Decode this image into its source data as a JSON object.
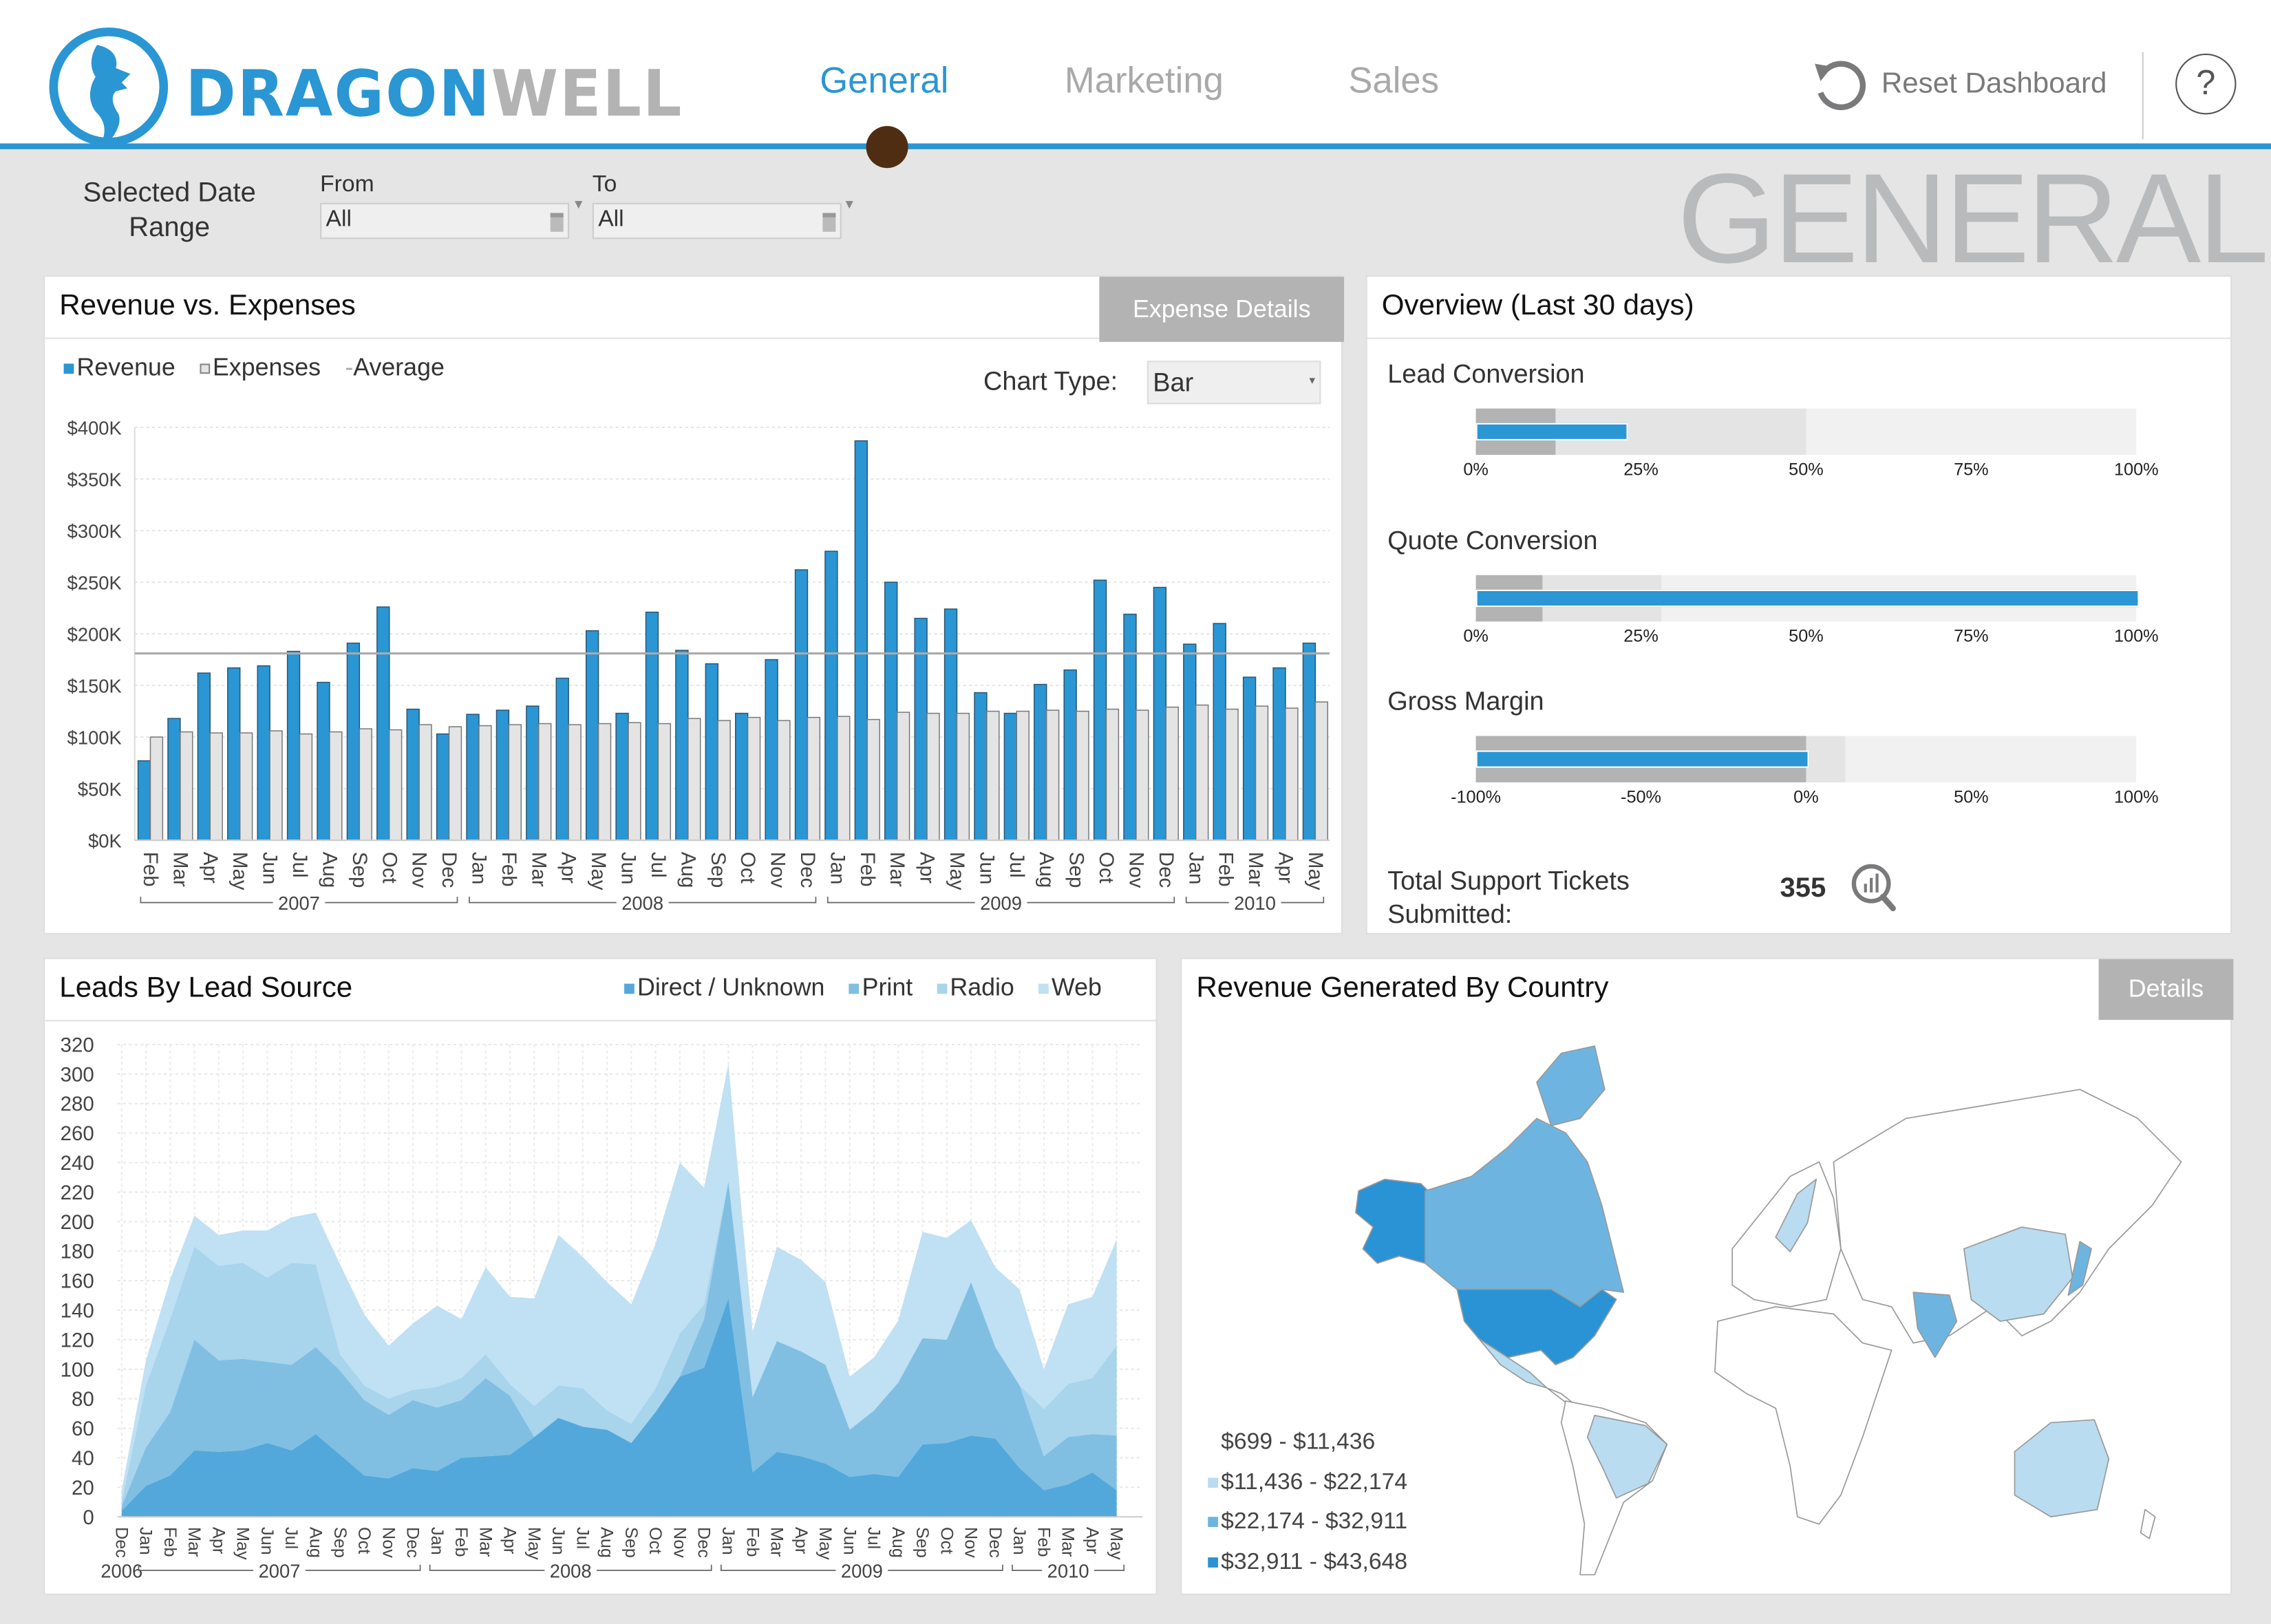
{
  "logo": {
    "part1": "DRAGON",
    "part2": "WELL"
  },
  "nav": {
    "tabs": [
      {
        "label": "General",
        "active": true
      },
      {
        "label": "Marketing"
      },
      {
        "label": "Sales"
      }
    ]
  },
  "toolbar": {
    "reset_label": "Reset Dashboard",
    "help_label": "?"
  },
  "filters": {
    "title": "Selected Date Range",
    "from_label": "From",
    "from_value": "All",
    "to_label": "To",
    "to_value": "All"
  },
  "page_title": "GENERAL",
  "revenue_panel": {
    "title": "Revenue vs. Expenses",
    "details_button": "Expense Details",
    "legend": [
      "Revenue",
      "Expenses",
      "Average"
    ],
    "chart_type_label": "Chart Type:",
    "chart_type_value": "Bar"
  },
  "overview_panel": {
    "title": "Overview (Last 30 days)",
    "bullets": [
      {
        "label": "Lead Conversion",
        "axis": [
          0,
          100
        ],
        "ticks": [
          "0%",
          "25%",
          "50%",
          "75%",
          "100%"
        ],
        "value": 22.6,
        "target": 12,
        "band": 50
      },
      {
        "label": "Quote Conversion",
        "axis": [
          0,
          100
        ],
        "ticks": [
          "0%",
          "25%",
          "50%",
          "75%",
          "100%"
        ],
        "value": 100,
        "target": 10,
        "band": 28
      },
      {
        "label": "Gross Margin",
        "axis": [
          -100,
          100
        ],
        "ticks": [
          "-100%",
          "-50%",
          "0%",
          "50%",
          "100%"
        ],
        "value": 0,
        "target": 0,
        "band": 12
      }
    ],
    "tickets_label": "Total Support Tickets Submitted:",
    "tickets_value": "355"
  },
  "leads_panel": {
    "title": "Leads By Lead Source",
    "legend": [
      "Direct / Unknown",
      "Print",
      "Radio",
      "Web"
    ]
  },
  "country_panel": {
    "title": "Revenue Generated By Country",
    "details_button": "Details",
    "legend": [
      "$699 - $11,436",
      "$11,436 - $22,174",
      "$22,174 - $32,911",
      "$32,911 - $43,648"
    ],
    "legend_colors": [
      "#ffffff",
      "#b9dcf0",
      "#6db5e0",
      "#2a93d5"
    ]
  },
  "colors": {
    "accent": "#2a96d4",
    "revenue": "#2a96d4",
    "expenses": "#e4e4e4",
    "average": "#aaaaaa",
    "title_gray": "#b9babb",
    "active_dot": "#4f2d12"
  },
  "chart_data": [
    {
      "type": "bar",
      "title": "Revenue vs. Expenses",
      "ylim": [
        0,
        400
      ],
      "yticks": [
        "$0K",
        "$50K",
        "$100K",
        "$150K",
        "$200K",
        "$250K",
        "$300K",
        "$350K",
        "$400K"
      ],
      "y_unit": "$K",
      "grid": true,
      "legend_position": "top-left",
      "months": [
        "Feb",
        "Mar",
        "Apr",
        "May",
        "Jun",
        "Jul",
        "Aug",
        "Sep",
        "Oct",
        "Nov",
        "Dec",
        "Jan",
        "Feb",
        "Mar",
        "Apr",
        "May",
        "Jun",
        "Jul",
        "Aug",
        "Sep",
        "Oct",
        "Nov",
        "Dec",
        "Jan",
        "Feb",
        "Mar",
        "Apr",
        "May",
        "Jun",
        "Jul",
        "Aug",
        "Sep",
        "Oct",
        "Nov",
        "Dec",
        "Jan",
        "Feb",
        "Mar",
        "Apr",
        "May"
      ],
      "year_groups": [
        {
          "label": "2007",
          "count": 11
        },
        {
          "label": "2008",
          "count": 12
        },
        {
          "label": "2009",
          "count": 12
        },
        {
          "label": "2010",
          "count": 5
        }
      ],
      "series": [
        {
          "name": "Revenue",
          "values": [
            77,
            118,
            162,
            167,
            169,
            183,
            153,
            191,
            226,
            127,
            103,
            122,
            126,
            130,
            157,
            203,
            123,
            221,
            184,
            171,
            123,
            175,
            262,
            280,
            387,
            250,
            215,
            224,
            143,
            123,
            151,
            165,
            252,
            219,
            245,
            190,
            210,
            158,
            167,
            191
          ]
        },
        {
          "name": "Expenses",
          "values": [
            100,
            105,
            104,
            104,
            106,
            103,
            105,
            108,
            107,
            112,
            110,
            111,
            112,
            113,
            112,
            113,
            114,
            113,
            118,
            116,
            119,
            116,
            119,
            120,
            117,
            124,
            123,
            123,
            125,
            125,
            126,
            125,
            127,
            126,
            129,
            131,
            127,
            130,
            128,
            134
          ]
        }
      ],
      "average": 181
    },
    {
      "type": "area",
      "stacked": true,
      "title": "Leads By Lead Source",
      "ylim": [
        0,
        320
      ],
      "yticks": [
        "0",
        "20",
        "40",
        "60",
        "80",
        "100",
        "120",
        "140",
        "160",
        "180",
        "200",
        "220",
        "240",
        "260",
        "280",
        "300",
        "320"
      ],
      "grid": true,
      "legend_position": "top-right",
      "months": [
        "Dec",
        "Jan",
        "Feb",
        "Mar",
        "Apr",
        "May",
        "Jun",
        "Jul",
        "Aug",
        "Sep",
        "Oct",
        "Nov",
        "Dec",
        "Jan",
        "Feb",
        "Mar",
        "Apr",
        "May",
        "Jun",
        "Jul",
        "Aug",
        "Sep",
        "Oct",
        "Nov",
        "Dec",
        "Jan",
        "Feb",
        "Mar",
        "Apr",
        "May",
        "Jun",
        "Jul",
        "Aug",
        "Sep",
        "Oct",
        "Nov",
        "Dec",
        "Jan",
        "Feb",
        "Mar",
        "Apr",
        "May"
      ],
      "year_groups": [
        {
          "label": "2006",
          "count": 1
        },
        {
          "label": "2007",
          "count": 12
        },
        {
          "label": "2008",
          "count": 12
        },
        {
          "label": "2009",
          "count": 12
        },
        {
          "label": "2010",
          "count": 5
        }
      ],
      "series": [
        {
          "name": "Direct / Unknown",
          "color": "#52a8da",
          "values": [
            4,
            21,
            28,
            45,
            44,
            45,
            50,
            45,
            56,
            42,
            28,
            26,
            33,
            31,
            40,
            41,
            42,
            54,
            67,
            61,
            59,
            50,
            71,
            95,
            101,
            148,
            30,
            44,
            41,
            36,
            27,
            29,
            27,
            49,
            50,
            55,
            53,
            33,
            18,
            22,
            30,
            18
          ]
        },
        {
          "name": "Print",
          "color": "#80bfe2",
          "values": [
            3,
            26,
            43,
            75,
            62,
            62,
            55,
            58,
            59,
            57,
            51,
            43,
            46,
            43,
            39,
            53,
            40,
            0,
            0,
            0,
            0,
            0,
            0,
            0,
            33,
            79,
            51,
            75,
            71,
            67,
            32,
            43,
            64,
            72,
            70,
            104,
            62,
            56,
            23,
            32,
            26,
            37
          ]
        },
        {
          "name": "Radio",
          "color": "#a8d4ec",
          "values": [
            3,
            42,
            63,
            63,
            64,
            65,
            57,
            69,
            56,
            11,
            10,
            11,
            7,
            14,
            15,
            16,
            8,
            21,
            22,
            26,
            13,
            13,
            16,
            29,
            10,
            0,
            0,
            0,
            0,
            0,
            0,
            0,
            0,
            0,
            0,
            0,
            0,
            0,
            32,
            36,
            38,
            61
          ]
        },
        {
          "name": "Web",
          "color": "#c0e0f3",
          "values": [
            8,
            17,
            27,
            21,
            21,
            22,
            32,
            31,
            35,
            61,
            48,
            36,
            45,
            55,
            40,
            59,
            59,
            73,
            102,
            89,
            87,
            81,
            98,
            116,
            79,
            80,
            44,
            64,
            62,
            56,
            36,
            36,
            42,
            72,
            69,
            42,
            54,
            65,
            27,
            54,
            55,
            72
          ]
        }
      ]
    }
  ]
}
